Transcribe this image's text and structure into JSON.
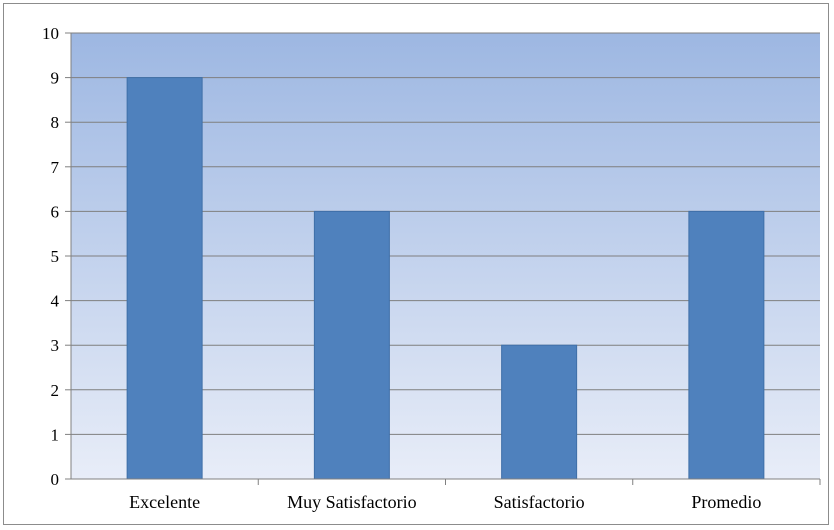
{
  "chart_data": {
    "type": "bar",
    "categories": [
      "Excelente",
      "Muy Satisfactorio",
      "Satisfactorio",
      "Promedio"
    ],
    "values": [
      9,
      6,
      3,
      6
    ],
    "title": "",
    "xlabel": "",
    "ylabel": "",
    "ylim": [
      0,
      10
    ],
    "yticks": [
      0,
      1,
      2,
      3,
      4,
      5,
      6,
      7,
      8,
      9,
      10
    ],
    "grid": true,
    "legend": "none",
    "colors": {
      "bar": "#4f81bd",
      "bar_border": "#3f6fa8",
      "plot_gradient_top": "#9db7e2",
      "plot_gradient_bottom": "#e8edf8",
      "grid": "#7f7f7f",
      "axis": "#808080"
    }
  }
}
